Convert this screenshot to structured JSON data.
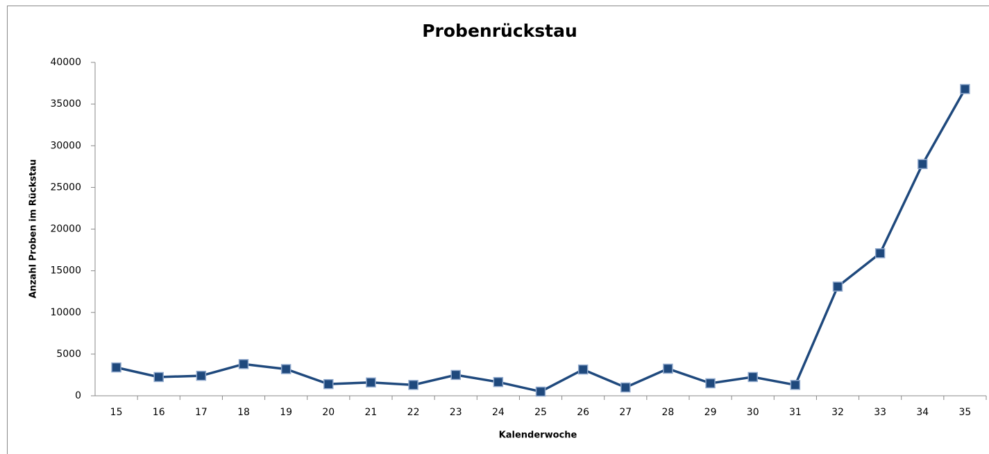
{
  "chart_data": {
    "type": "line",
    "title": "Probenrückstau",
    "x_label": "Kalenderwoche",
    "y_label": "Anzahl Proben im Rückstau",
    "categories": [
      "15",
      "16",
      "17",
      "18",
      "19",
      "20",
      "21",
      "22",
      "23",
      "24",
      "25",
      "26",
      "27",
      "28",
      "29",
      "30",
      "31",
      "32",
      "33",
      "34",
      "35"
    ],
    "series": [
      {
        "name": "Probenrückstau",
        "color": "#1f497d",
        "values": [
          3400,
          2250,
          2400,
          3800,
          3200,
          1400,
          1600,
          1300,
          2500,
          1650,
          500,
          3150,
          1000,
          3250,
          1500,
          2250,
          1300,
          13100,
          17100,
          27800,
          36800
        ]
      }
    ],
    "ylim": [
      0,
      40000
    ],
    "yticks": [
      0,
      5000,
      10000,
      15000,
      20000,
      25000,
      30000,
      35000,
      40000
    ],
    "grid": false
  }
}
